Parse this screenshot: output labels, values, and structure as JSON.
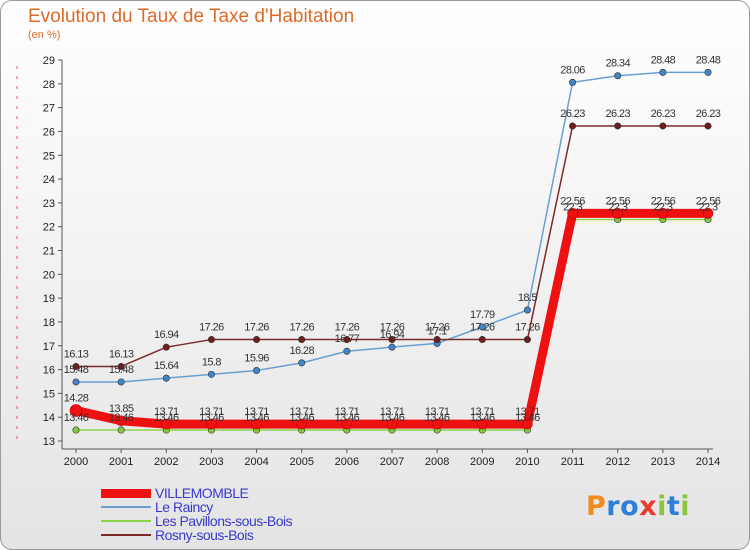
{
  "title": "Evolution du Taux de Taxe d'Habitation",
  "unit_label": "(en %)",
  "logo": {
    "letters": [
      "P",
      "r",
      "o",
      "x",
      "i",
      "t",
      "i"
    ],
    "colors": [
      "#f28a1e",
      "#2e7fd6",
      "#2e7fd6",
      "#e83a2a",
      "#8bc53f",
      "#2e7fd6",
      "#8bc53f"
    ]
  },
  "chart_data": {
    "type": "line",
    "title": "Evolution du Taux de Taxe d'Habitation",
    "ylabel": "(en %)",
    "x": [
      2000,
      2001,
      2002,
      2003,
      2004,
      2005,
      2006,
      2007,
      2008,
      2009,
      2010,
      2011,
      2012,
      2013,
      2014
    ],
    "ylim": [
      13,
      29
    ],
    "yticks": [
      13,
      14,
      15,
      16,
      17,
      18,
      19,
      20,
      21,
      22,
      23,
      24,
      25,
      26,
      27,
      28,
      29
    ],
    "grid": false,
    "legend": "bottom-left",
    "series": [
      {
        "name": "VILLEMOMBLE",
        "color": "#ee1111",
        "marker_color": "#ee1111",
        "thick": true,
        "values": [
          14.28,
          13.85,
          13.71,
          13.71,
          13.71,
          13.71,
          13.71,
          13.71,
          13.71,
          13.71,
          13.71,
          22.56,
          22.56,
          22.56,
          22.56
        ],
        "labels": [
          "14.28",
          "13.85",
          "13.71",
          "13.71",
          "13.71",
          "13.71",
          "13.71",
          "13.71",
          "13.71",
          "13.71",
          "13.71",
          "22.56",
          "22.56",
          "22.56",
          "22.56"
        ]
      },
      {
        "name": "Le Raincy",
        "color": "#6a9fd0",
        "marker_color": "#3f86c9",
        "thick": false,
        "values": [
          15.48,
          15.48,
          15.64,
          15.8,
          15.96,
          16.28,
          16.77,
          16.94,
          17.1,
          17.79,
          18.5,
          28.06,
          28.34,
          28.48,
          28.48
        ],
        "labels": [
          "15.48",
          "15.48",
          "15.64",
          "15.8",
          "15.96",
          "16.28",
          "16.77",
          "16.94",
          "17.1",
          "17.79",
          "18.5",
          "28.06",
          "28.34",
          "28.48",
          "28.48"
        ]
      },
      {
        "name": "Les Pavillons-sous-Bois",
        "color": "#8ed14b",
        "marker_color": "#7fc93b",
        "thick": false,
        "values": [
          13.46,
          13.46,
          13.46,
          13.46,
          13.46,
          13.46,
          13.46,
          13.46,
          13.46,
          13.46,
          13.46,
          22.3,
          22.3,
          22.3,
          22.3
        ],
        "labels": [
          "13.46",
          "13.46",
          "13.46",
          "13.46",
          "13.46",
          "13.46",
          "13.46",
          "13.46",
          "13.46",
          "13.46",
          "13.46",
          "22.3",
          "22.3",
          "22.3",
          "22.3"
        ]
      },
      {
        "name": "Rosny-sous-Bois",
        "color": "#7d2a2a",
        "marker_color": "#6e1c1c",
        "thick": false,
        "values": [
          16.13,
          16.13,
          16.94,
          17.26,
          17.26,
          17.26,
          17.26,
          17.26,
          17.26,
          17.26,
          17.26,
          26.23,
          26.23,
          26.23,
          26.23
        ],
        "labels": [
          "16.13",
          "16.13",
          "16.94",
          "17.26",
          "17.26",
          "17.26",
          "17.26",
          "17.26",
          "17.26",
          "17.26",
          "17.26",
          "26.23",
          "26.23",
          "26.23",
          "26.23"
        ]
      }
    ]
  }
}
